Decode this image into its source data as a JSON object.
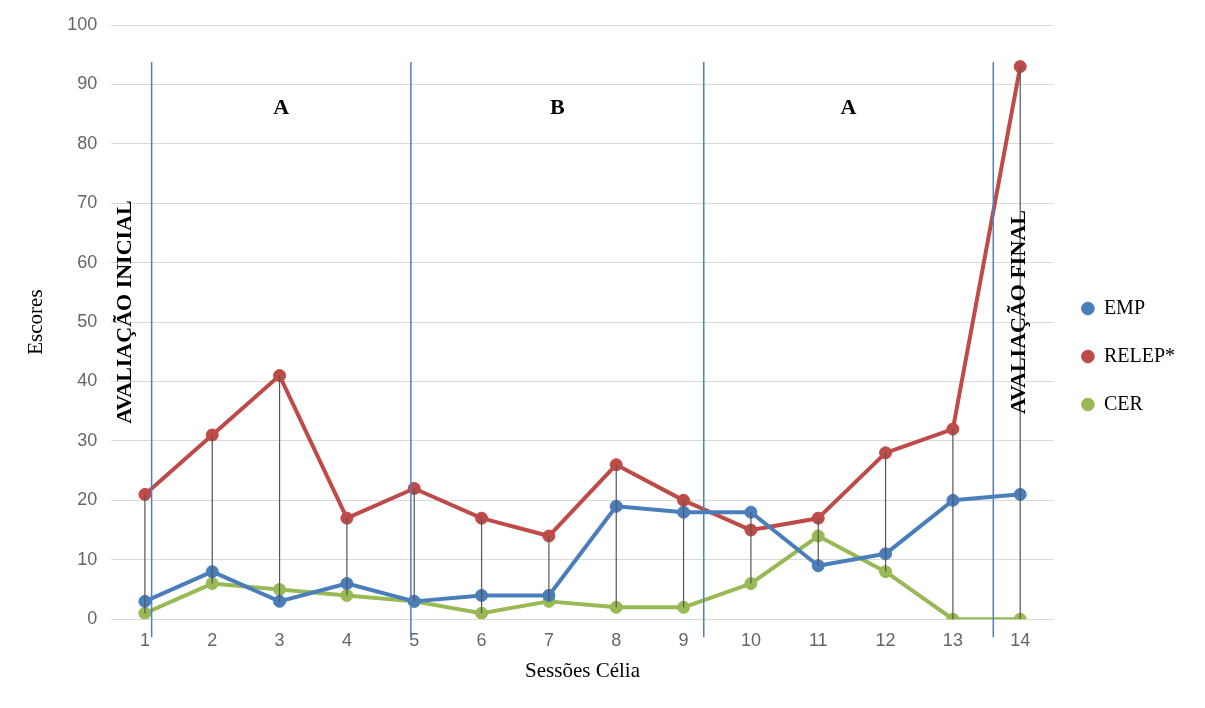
{
  "chart_data": {
    "type": "line",
    "xlabel": "Sessões Célia",
    "ylabel": "Escores",
    "x": [
      1,
      2,
      3,
      4,
      5,
      6,
      7,
      8,
      9,
      10,
      11,
      12,
      13,
      14
    ],
    "xlim": [
      0.5,
      14.5
    ],
    "xticks": [
      1,
      2,
      3,
      4,
      5,
      6,
      7,
      8,
      9,
      10,
      11,
      12,
      13,
      14
    ],
    "ylim": [
      0,
      100
    ],
    "yticks": [
      0,
      10,
      20,
      30,
      40,
      50,
      60,
      70,
      80,
      90,
      100
    ],
    "series": [
      {
        "name": "EMP",
        "color": "#4a7ebb",
        "values": [
          3,
          8,
          3,
          6,
          3,
          4,
          4,
          19,
          18,
          18,
          9,
          11,
          20,
          21
        ]
      },
      {
        "name": "RELEP*",
        "color": "#be4b48",
        "values": [
          21,
          31,
          41,
          17,
          22,
          17,
          14,
          26,
          20,
          15,
          17,
          28,
          32,
          93
        ],
        "errors": [
          [
            1,
            21
          ],
          [
            6,
            31
          ],
          [
            3,
            41
          ],
          [
            4,
            17
          ],
          [
            3,
            22
          ],
          [
            1,
            17
          ],
          [
            3,
            14
          ],
          [
            2,
            26
          ],
          [
            2,
            20
          ],
          [
            6,
            18
          ],
          [
            9,
            17
          ],
          [
            8,
            28
          ],
          [
            0,
            32
          ],
          [
            0,
            93
          ]
        ]
      },
      {
        "name": "CER",
        "color": "#98b954",
        "values": [
          1,
          6,
          5,
          4,
          3,
          1,
          3,
          2,
          2,
          6,
          14,
          8,
          0,
          0
        ]
      }
    ],
    "ref_lines": [
      {
        "axis": "x",
        "value": 1.1,
        "label": "AVALIAÇÃO INICIAL",
        "color": "#4f81bd"
      },
      {
        "axis": "x",
        "value": 4.95,
        "color": "#4f81bd"
      },
      {
        "axis": "x",
        "value": 9.3,
        "color": "#4f81bd"
      },
      {
        "axis": "x",
        "value": 13.6,
        "label": "AVALIAÇÃO FINAL",
        "color": "#4f81bd"
      }
    ],
    "annotations": [
      "A",
      "B",
      "A"
    ],
    "grid": "y",
    "legend": "right",
    "marker": "circle",
    "line_style": "solid"
  }
}
